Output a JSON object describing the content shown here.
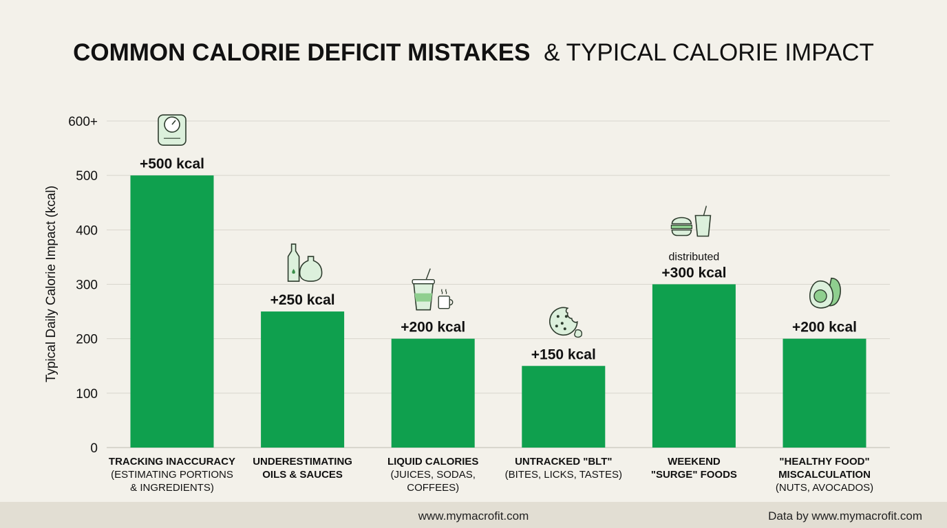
{
  "chart_data": {
    "type": "bar",
    "title_bold": "COMMON CALORIE DEFICIT MISTAKES",
    "title_rest": "& TYPICAL CALORIE IMPACT",
    "ylabel": "Typical Daily Calorie Impact (kcal)",
    "ylim": [
      0,
      600
    ],
    "yticks": [
      "0",
      "100",
      "200",
      "300",
      "400",
      "500",
      "600+"
    ],
    "grid": true,
    "bar_color": "#0fa04e",
    "categories": [
      {
        "line1": "TRACKING INACCURACY",
        "line2": "(ESTIMATING PORTIONS",
        "line3": "& INGREDIENTS)",
        "bold_lines": 1
      },
      {
        "line1": "UNDERESTIMATING",
        "line2": "OILS & SAUCES",
        "line3": "",
        "bold_lines": 2
      },
      {
        "line1": "LIQUID CALORIES",
        "line2": "(JUICES, SODAS,",
        "line3": "COFFEES)",
        "bold_lines": 1
      },
      {
        "line1": "UNTRACKED \"BLT\"",
        "line2": "(BITES, LICKS, TASTES)",
        "line3": "",
        "bold_lines": 1
      },
      {
        "line1": "WEEKEND",
        "line2": "\"SURGE\" FOODS",
        "line3": "",
        "bold_lines": 2
      },
      {
        "line1": "\"HEALTHY FOOD\"",
        "line2": "MISCALCULATION",
        "line3": "(NUTS, AVOCADOS)",
        "bold_lines": 2
      }
    ],
    "values": [
      500,
      250,
      200,
      150,
      300,
      200
    ],
    "data_labels": [
      "+500 kcal",
      "+250 kcal",
      "+200 kcal",
      "+150 kcal",
      "+300 kcal",
      "+200 kcal"
    ],
    "annotations": [
      "",
      "",
      "",
      "",
      "distributed",
      ""
    ],
    "icons": [
      "scale-icon",
      "oil-bottles-icon",
      "drink-cups-icon",
      "cookie-icon",
      "burger-drink-icon",
      "avocado-icon"
    ]
  },
  "footer": {
    "site": "www.mymacrofit.com",
    "credit": "Data by www.mymacrofit.com"
  }
}
